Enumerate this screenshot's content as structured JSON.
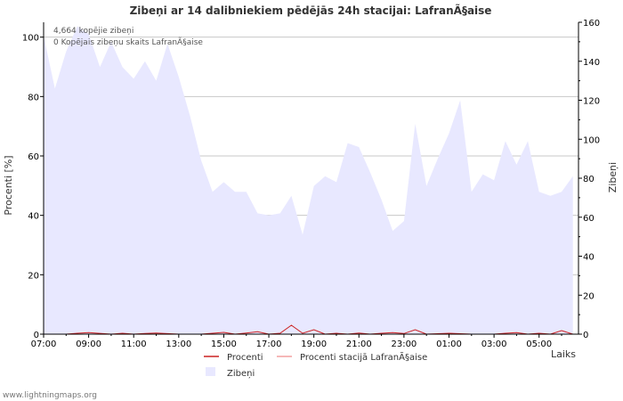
{
  "chart_data": {
    "type": "area",
    "title": "Zibeņi ar 14 dalibniekiem pēdējās 24h stacijai: LafranÃ§aise",
    "xlabel": "Laiks",
    "ylabel_left": "Procenti   [%]",
    "ylabel_right": "Zibeņi",
    "ylim_left": [
      0,
      105
    ],
    "ylim_right": [
      0,
      160
    ],
    "yticks_left": [
      0,
      20,
      40,
      60,
      80,
      100
    ],
    "yticks_right": [
      0,
      20,
      40,
      60,
      80,
      100,
      120,
      140,
      160
    ],
    "xticks": [
      "07:00",
      "09:00",
      "11:00",
      "13:00",
      "15:00",
      "17:00",
      "19:00",
      "21:00",
      "23:00",
      "01:00",
      "03:00",
      "05:00"
    ],
    "annotations": [
      "4,664 kopējie zibeņi",
      "0 Kopējais zibeņu skaits LafranÃ§aise"
    ],
    "series": [
      {
        "name": "Zibeņi",
        "axis": "right",
        "color": "#e8e8ff",
        "x_hours": [
          0,
          0.5,
          1,
          1.5,
          2,
          2.5,
          3,
          3.5,
          4,
          4.5,
          5,
          5.5,
          6,
          6.5,
          7,
          7.5,
          8,
          8.5,
          9,
          9.5,
          10,
          10.5,
          11,
          11.5,
          12,
          12.5,
          13,
          13.5,
          14,
          14.5,
          15,
          15.5,
          16,
          16.5,
          17,
          17.5,
          18,
          18.5,
          19,
          19.5,
          20,
          20.5,
          21,
          21.5,
          22,
          22.5,
          23,
          23.5
        ],
        "values": [
          153,
          126,
          145,
          158,
          154,
          137,
          150,
          137,
          131,
          140,
          130,
          149,
          132,
          112,
          89,
          73,
          78,
          73,
          73,
          62,
          61,
          62,
          71,
          51,
          76,
          81,
          78,
          98,
          96,
          83,
          69,
          53,
          58,
          108,
          76,
          90,
          103,
          120,
          73,
          82,
          79,
          99,
          87,
          99,
          73,
          71,
          73,
          81
        ]
      },
      {
        "name": "Procenti",
        "axis": "left",
        "color": "#cc2222",
        "x_hours": [
          0,
          1,
          1.5,
          2,
          3,
          3.5,
          4,
          4.5,
          5,
          6,
          7,
          7.5,
          8,
          8.5,
          9,
          9.5,
          10,
          10.5,
          11,
          11.5,
          12,
          12.5,
          13,
          13.5,
          14,
          14.5,
          15,
          15.5,
          16,
          16.5,
          17,
          18,
          19,
          20,
          20.5,
          21,
          21.5,
          22,
          22.5,
          23,
          23.5
        ],
        "values": [
          0,
          0,
          0.3,
          0.5,
          0,
          0.3,
          0,
          0.2,
          0.4,
          0,
          0,
          0.3,
          0.6,
          0,
          0.4,
          0.8,
          0,
          0.3,
          3,
          0.3,
          1.5,
          0,
          0.3,
          0,
          0.4,
          0,
          0.3,
          0.5,
          0.2,
          1.5,
          0,
          0.3,
          0,
          0,
          0.3,
          0.5,
          0,
          0.3,
          0,
          1.2,
          0
        ]
      },
      {
        "name": "Procenti stacijā LafranÃ§aise",
        "axis": "left",
        "color": "#f4a0a0",
        "x_hours": [
          0,
          23.5
        ],
        "values": [
          0,
          0
        ]
      }
    ],
    "legend": [
      {
        "label": "Procenti",
        "color": "#cc2222",
        "kind": "line"
      },
      {
        "label": "Procenti stacijā LafranÃ§aise",
        "color": "#f4a0a0",
        "kind": "line"
      },
      {
        "label": "Zibeņi",
        "color": "#e8e8ff",
        "kind": "box"
      }
    ]
  },
  "footer": "www.lightningmaps.org"
}
